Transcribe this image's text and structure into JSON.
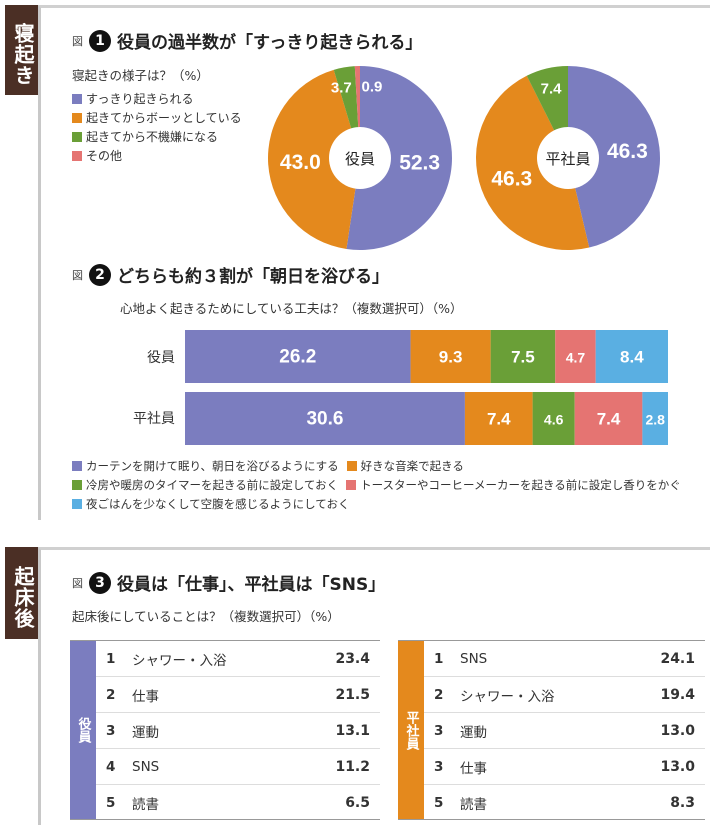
{
  "sections": {
    "wake": "寝起き",
    "after": "起床後"
  },
  "fig_label": "図",
  "colors": {
    "blue": "#7b7dbf",
    "orange": "#e4891d",
    "green": "#6a9f37",
    "red": "#e57472",
    "lightblue": "#5aafe2",
    "brown": "#4b2f25"
  },
  "chart_data": [
    {
      "type": "pie",
      "number": "1",
      "title": "役員の過半数が「すっきり起きられる」",
      "subtitle": "寝起きの様子は？（%）",
      "legend": [
        "すっきり起きられる",
        "起きてからボーッとしている",
        "起きてから不機嫌になる",
        "その他"
      ],
      "pies": [
        {
          "name": "役員",
          "values": [
            52.3,
            43.0,
            3.7,
            0.9
          ],
          "labels": [
            "52.3",
            "43.0",
            "3.7",
            "0.9"
          ]
        },
        {
          "name": "平社員",
          "values": [
            46.3,
            46.3,
            7.4,
            0
          ],
          "labels": [
            "46.3",
            "46.3",
            "7.4",
            ""
          ]
        }
      ]
    },
    {
      "type": "bar",
      "stacked": true,
      "orientation": "horizontal",
      "number": "2",
      "title": "どちらも約３割が「朝日を浴びる」",
      "subtitle": "心地よく起きるためにしている工夫は？（複数選択可）（%）",
      "categories": [
        "役員",
        "平社員"
      ],
      "series": [
        {
          "name": "カーテンを開けて眠り、朝日を浴びるようにする",
          "values": [
            26.2,
            30.6
          ]
        },
        {
          "name": "好きな音楽で起きる",
          "values": [
            9.3,
            7.4
          ]
        },
        {
          "name": "冷房や暖房のタイマーを起きる前に設定しておく",
          "values": [
            7.5,
            4.6
          ]
        },
        {
          "name": "トースターやコーヒーメーカーを起きる前に設定し香りをかぐ",
          "values": [
            4.7,
            7.4
          ]
        },
        {
          "name": "夜ごはんを少なくして空腹を感じるようにしておく",
          "values": [
            8.4,
            2.8
          ]
        }
      ]
    },
    {
      "type": "table",
      "number": "3",
      "title": "役員は「仕事」、平社員は「SNS」",
      "subtitle": "起床後にしていることは？（複数選択可）（%）",
      "tables": [
        {
          "name": "役員",
          "rows": [
            {
              "rank": "1",
              "item": "シャワー・入浴",
              "value": "23.4"
            },
            {
              "rank": "2",
              "item": "仕事",
              "value": "21.5"
            },
            {
              "rank": "3",
              "item": "運動",
              "value": "13.1"
            },
            {
              "rank": "4",
              "item": "SNS",
              "value": "11.2"
            },
            {
              "rank": "5",
              "item": "読書",
              "value": "6.5"
            }
          ]
        },
        {
          "name": "平社員",
          "rows": [
            {
              "rank": "1",
              "item": "SNS",
              "value": "24.1"
            },
            {
              "rank": "2",
              "item": "シャワー・入浴",
              "value": "19.4"
            },
            {
              "rank": "3",
              "item": "運動",
              "value": "13.0"
            },
            {
              "rank": "3",
              "item": "仕事",
              "value": "13.0"
            },
            {
              "rank": "5",
              "item": "読書",
              "value": "8.3"
            }
          ]
        }
      ]
    }
  ]
}
